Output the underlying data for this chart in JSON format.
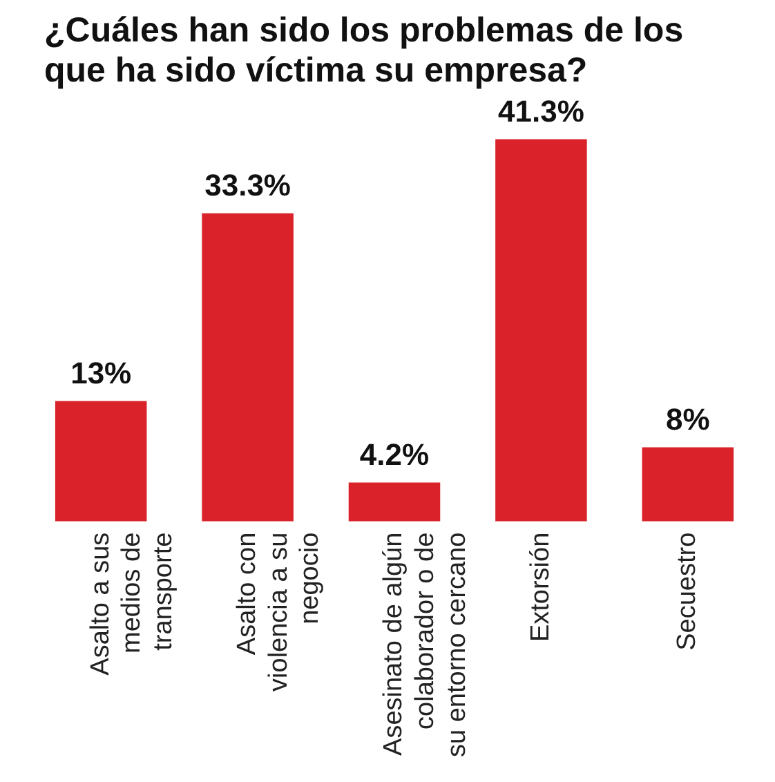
{
  "chart_data": {
    "type": "bar",
    "title": "¿Cuáles han sido los problemas de los que ha sido víctima su empresa?",
    "categories": [
      "Asalto a sus medios de transporte",
      "Asalto con violencia a su negocio",
      "Asesinato de algún colaborador o de su entorno cercano",
      "Extorsión",
      "Secuestro"
    ],
    "values": [
      13,
      33.3,
      4.2,
      41.3,
      8
    ],
    "color": "#d9222a",
    "value_labels": [
      "13%",
      "33.3%",
      "4.2%",
      "41.3%",
      "8%"
    ],
    "tick_labels": "x"
  }
}
